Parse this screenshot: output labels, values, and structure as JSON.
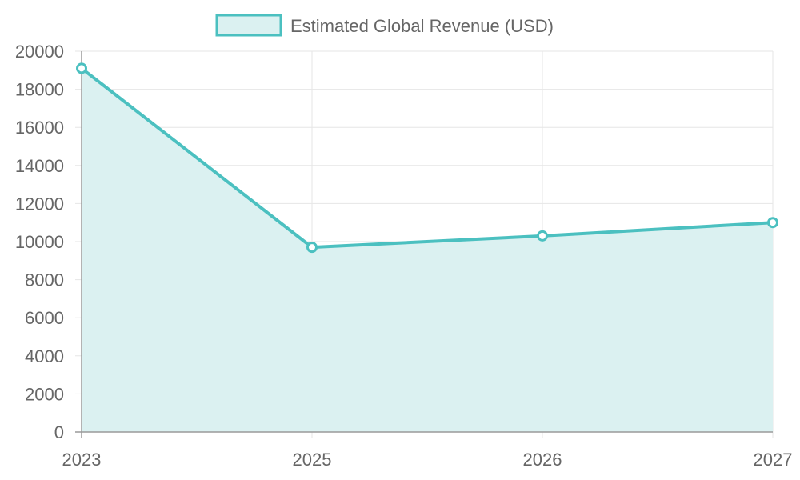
{
  "chart_data": {
    "type": "area",
    "categories": [
      "2023",
      "2025",
      "2026",
      "2027"
    ],
    "series": [
      {
        "name": "Estimated Global Revenue (USD)",
        "values": [
          19100,
          9700,
          10300,
          11000
        ],
        "line_color": "#4bc0c0",
        "fill_color": "#dbf1f1"
      }
    ],
    "ylim": [
      0,
      20000
    ],
    "yticks": [
      0,
      2000,
      4000,
      6000,
      8000,
      10000,
      12000,
      14000,
      16000,
      18000,
      20000
    ],
    "grid": true,
    "legend_position": "top"
  }
}
